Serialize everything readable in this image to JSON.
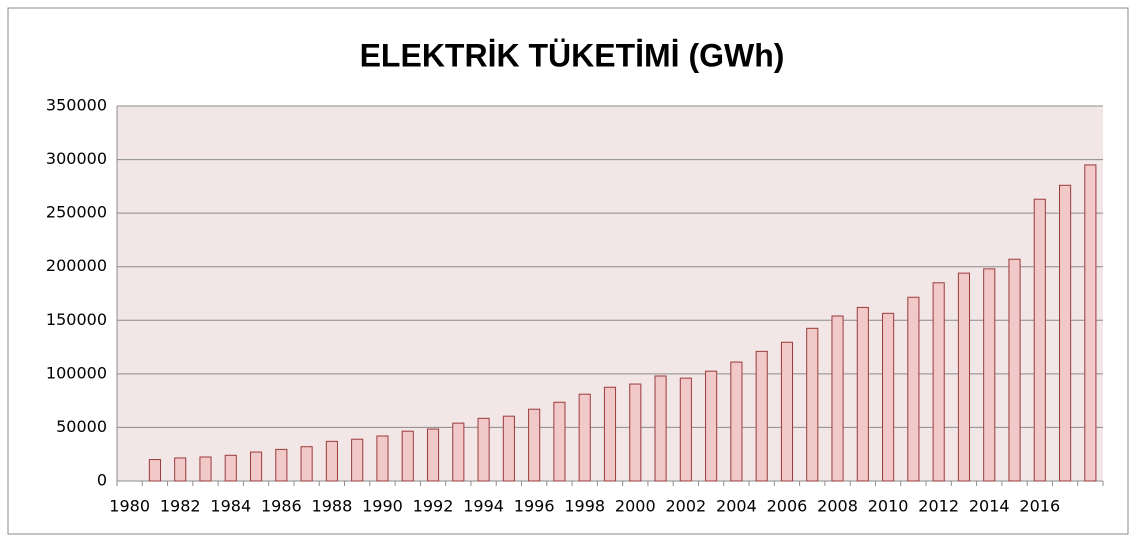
{
  "chart_data": {
    "type": "bar",
    "title": "ELEKTRİK TÜKETİMİ (GWh)",
    "categories": [
      "1980",
      null,
      "1982",
      null,
      "1984",
      null,
      "1986",
      null,
      "1988",
      null,
      "1990",
      null,
      "1992",
      null,
      "1994",
      null,
      "1996",
      null,
      "1998",
      null,
      "2000",
      null,
      "2002",
      null,
      "2004",
      null,
      "2006",
      null,
      "2008",
      null,
      "2010",
      null,
      "2012",
      null,
      "2014",
      null,
      "2016",
      null,
      null
    ],
    "values": [
      null,
      20000,
      21500,
      22400,
      24000,
      27000,
      29500,
      32000,
      37000,
      39000,
      42000,
      46500,
      48500,
      54000,
      58500,
      60500,
      67000,
      73500,
      81000,
      87500,
      90500,
      98000,
      96000,
      102500,
      111000,
      121000,
      129500,
      142500,
      154000,
      162000,
      156500,
      171500,
      185000,
      194000,
      198000,
      207000,
      263000,
      276000,
      295000
    ],
    "color": "#f2c9c9",
    "edge_color": "#9b3b3b",
    "ylim": [
      0,
      350000
    ],
    "yticks": [
      0,
      50000,
      100000,
      150000,
      200000,
      250000,
      300000,
      350000
    ],
    "grid": true
  }
}
